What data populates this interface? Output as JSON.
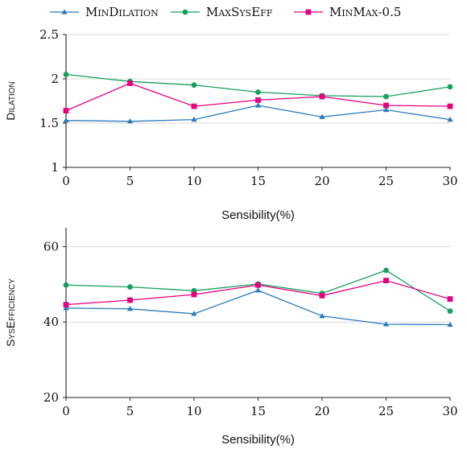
{
  "chart_data": [
    {
      "type": "line",
      "title": "",
      "xlabel": "Sensibility(%)",
      "ylabel": "Dilation",
      "x": [
        0,
        5,
        10,
        15,
        20,
        25,
        30
      ],
      "xlim": [
        0,
        30
      ],
      "ylim": [
        1,
        2.5
      ],
      "xticks": [
        "0",
        "5",
        "10",
        "15",
        "20",
        "25",
        "30"
      ],
      "yticks": [
        "1",
        "1.5",
        "2",
        "2.5"
      ],
      "ytick_values": [
        1,
        1.5,
        2,
        2.5
      ],
      "grid": "horizontal",
      "legend": "top",
      "series": [
        {
          "name": "MinDilation",
          "color": "#2b7bba",
          "marker": "triangle",
          "values": [
            1.53,
            1.52,
            1.54,
            1.7,
            1.57,
            1.65,
            1.54
          ]
        },
        {
          "name": "MaxSysEff",
          "color": "#16a05d",
          "marker": "circle",
          "values": [
            2.05,
            1.97,
            1.93,
            1.85,
            1.81,
            1.8,
            1.91
          ]
        },
        {
          "name": "MinMax-0.5",
          "color": "#e6007e",
          "marker": "square",
          "values": [
            1.64,
            1.95,
            1.69,
            1.76,
            1.8,
            1.7,
            1.69
          ]
        }
      ]
    },
    {
      "type": "line",
      "title": "",
      "xlabel": "Sensibility(%)",
      "ylabel": "SysEfficiency",
      "x": [
        0,
        5,
        10,
        15,
        20,
        25,
        30
      ],
      "xlim": [
        0,
        30
      ],
      "ylim": [
        20,
        65
      ],
      "xticks": [
        "0",
        "5",
        "10",
        "15",
        "20",
        "25",
        "30"
      ],
      "yticks": [
        "20",
        "40",
        "60"
      ],
      "ytick_values": [
        20,
        40,
        60
      ],
      "grid": "horizontal",
      "legend": "top",
      "series": [
        {
          "name": "MinDilation",
          "color": "#2b7bba",
          "marker": "triangle",
          "values": [
            43.7,
            43.5,
            42.2,
            48.4,
            41.6,
            39.4,
            39.3
          ]
        },
        {
          "name": "MaxSysEff",
          "color": "#16a05d",
          "marker": "circle",
          "values": [
            49.8,
            49.3,
            48.3,
            50.1,
            47.6,
            53.7,
            42.9
          ]
        },
        {
          "name": "MinMax-0.5",
          "color": "#e6007e",
          "marker": "square",
          "values": [
            44.6,
            45.8,
            47.3,
            49.8,
            47.0,
            51.0,
            46.1
          ]
        }
      ]
    }
  ]
}
